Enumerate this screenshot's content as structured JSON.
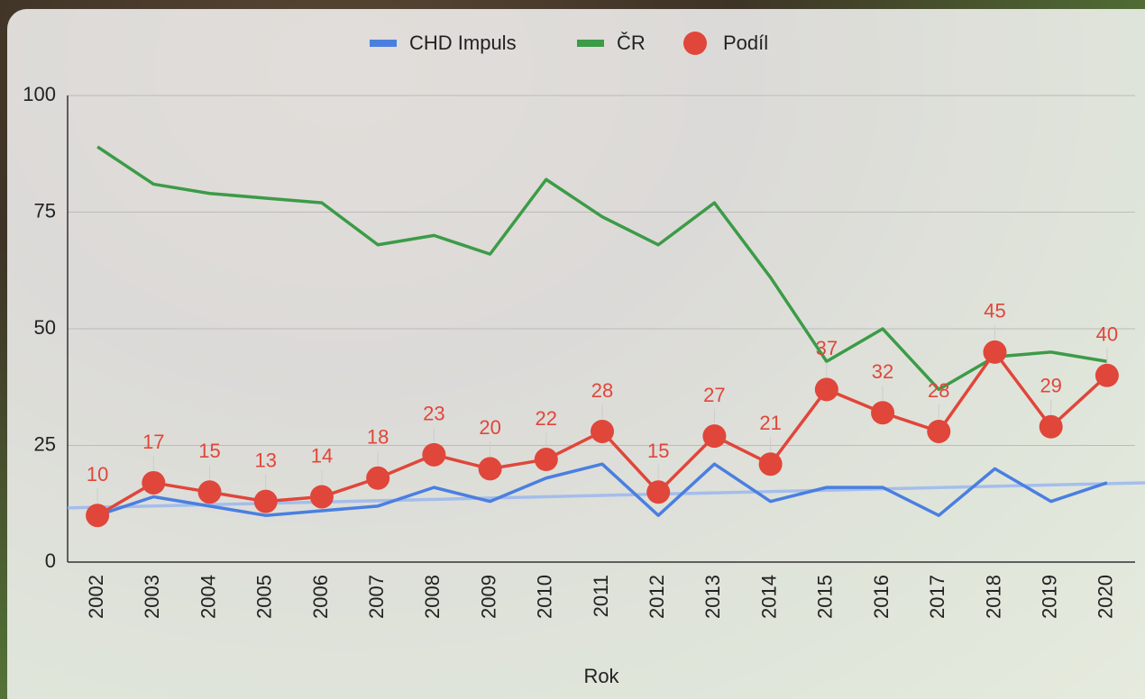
{
  "chart_data": {
    "type": "line",
    "x_label": "Rok",
    "categories": [
      "2002",
      "2003",
      "2004",
      "2005",
      "2006",
      "2007",
      "2008",
      "2009",
      "2010",
      "2011",
      "2012",
      "2013",
      "2014",
      "2015",
      "2016",
      "2017",
      "2018",
      "2019",
      "2020"
    ],
    "series": [
      {
        "name": "CHD Impuls",
        "color": "#4a7fe0",
        "values": [
          10,
          14,
          12,
          10,
          11,
          12,
          16,
          13,
          18,
          21,
          10,
          21,
          13,
          16,
          16,
          10,
          20,
          13,
          17
        ]
      },
      {
        "name": "ČR",
        "color": "#3c9b47",
        "values": [
          89,
          81,
          79,
          78,
          77,
          68,
          70,
          66,
          82,
          74,
          68,
          77,
          61,
          43,
          50,
          37,
          44,
          45,
          43
        ]
      },
      {
        "name": "Podíl",
        "color": "#e0463a",
        "markers": true,
        "data_labels": true,
        "values": [
          10,
          17,
          15,
          13,
          14,
          18,
          23,
          20,
          22,
          28,
          15,
          27,
          21,
          37,
          32,
          28,
          45,
          29,
          40
        ]
      }
    ],
    "trendline": {
      "color": "#9bb8ef",
      "values": [
        11.6,
        17
      ]
    },
    "ylim": [
      0,
      100
    ],
    "yticks": [
      0,
      25,
      50,
      75,
      100
    ],
    "grid": true,
    "legend": "top"
  }
}
